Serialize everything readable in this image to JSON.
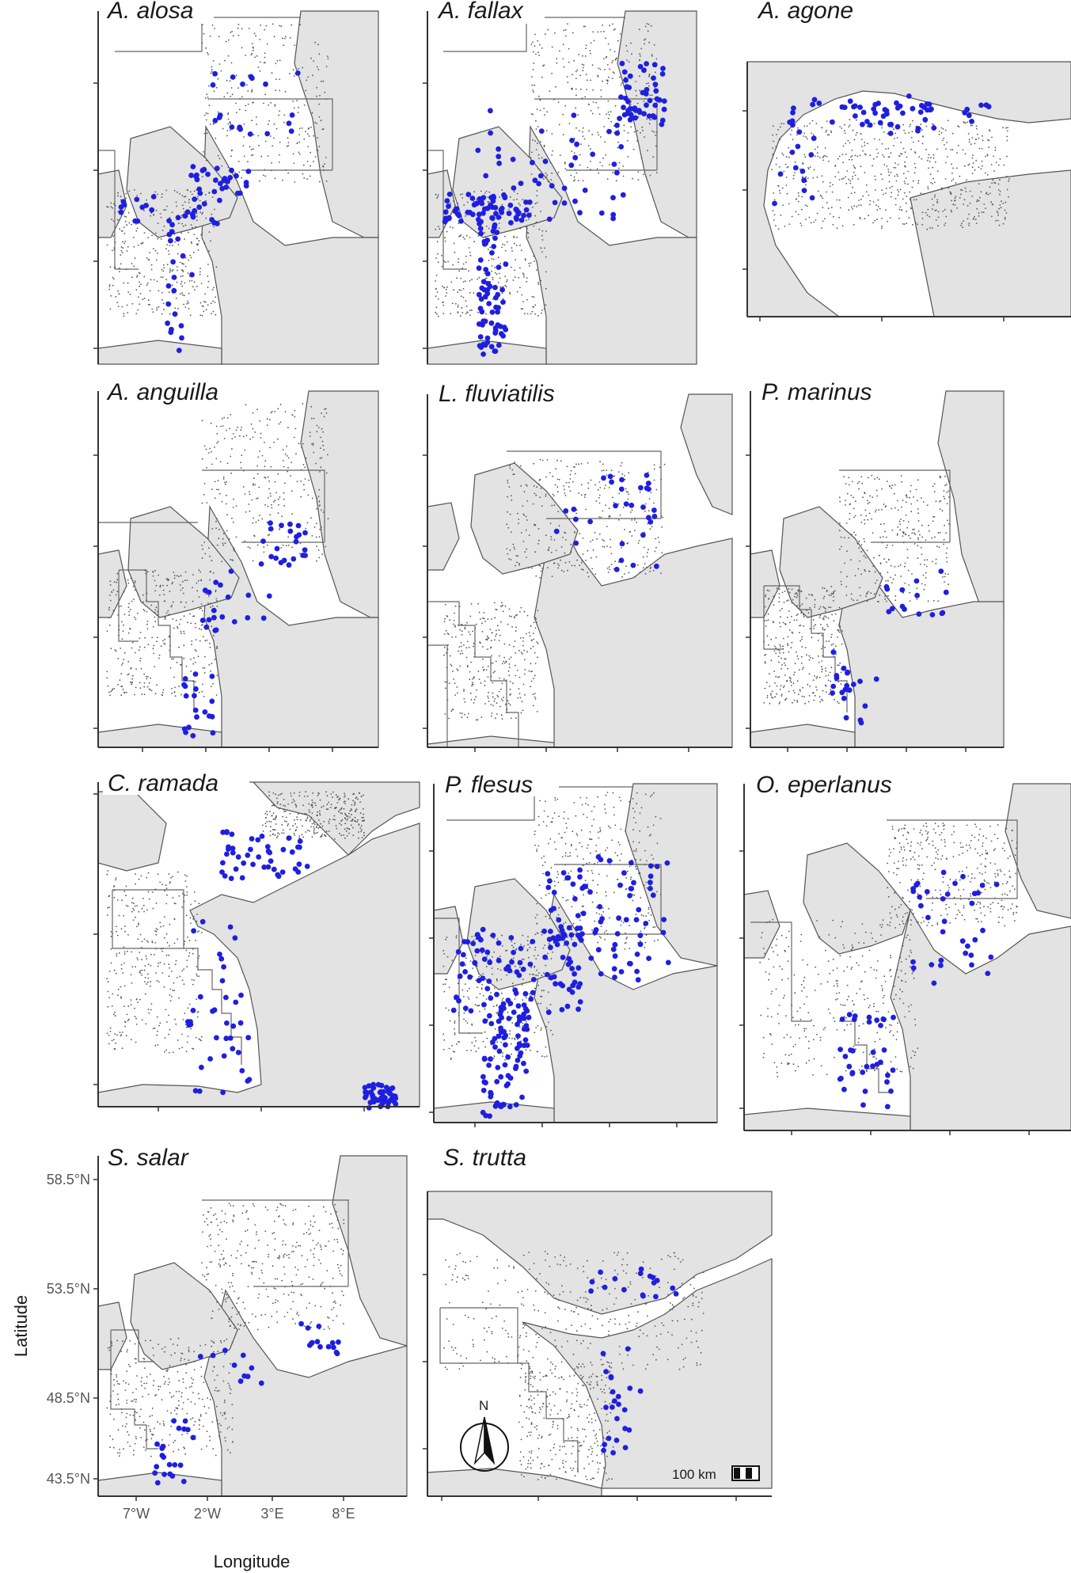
{
  "colors": {
    "land": "#e3e3e3",
    "sea": "#ffffff",
    "coast": "#555555",
    "record": "#1f1fe0",
    "sampling": "#444444"
  },
  "panels": [
    {
      "title": "A. alosa"
    },
    {
      "title": "A. fallax"
    },
    {
      "title": "A. agone"
    },
    {
      "title": "A. anguilla"
    },
    {
      "title": "L. fluviatilis"
    },
    {
      "title": "P. marinus"
    },
    {
      "title": "C. ramada"
    },
    {
      "title": "P. flesus"
    },
    {
      "title": "O. eperlanus"
    },
    {
      "title": "S. salar"
    },
    {
      "title": "S. trutta"
    }
  ],
  "axes": {
    "x_label": "Longitude",
    "y_label": "Latitude",
    "x_ticks": [
      "7°W",
      "2°W",
      "3°E",
      "8°E"
    ],
    "y_ticks": [
      "58.5°N",
      "53.5°N",
      "48.5°N",
      "43.5°N"
    ]
  },
  "north_arrow": {
    "label": "N"
  },
  "scale_bar": {
    "label": "100 km"
  }
}
